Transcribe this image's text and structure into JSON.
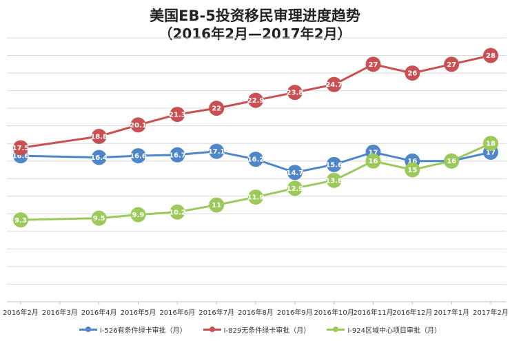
{
  "chart_data": {
    "type": "line",
    "title": "美国EB-5投资移民审理进度趋势",
    "subtitle": "（2016年2月—2017年2月）",
    "categories": [
      "2016年2月",
      "2016年3月",
      "2016年4月",
      "2016年5月",
      "2016年6月",
      "2016年7月",
      "2016年8月",
      "2016年9月",
      "2016年10月",
      "2016年11月",
      "2016年12月",
      "2017年1月",
      "2017年2月"
    ],
    "ylim": [
      0,
      30
    ],
    "grid": true,
    "legend_position": "bottom",
    "series": [
      {
        "name": "I-526有条件绿卡审批（月）",
        "color": "#4e86c8",
        "values": [
          16.6,
          null,
          16.4,
          16.6,
          16.7,
          17.1,
          16.2,
          14.7,
          15.6,
          17,
          16,
          16,
          17
        ]
      },
      {
        "name": "I-829无条件绿卡审批（月）",
        "color": "#c95052",
        "values": [
          17.5,
          null,
          18.8,
          20.1,
          21.3,
          22,
          22.9,
          23.8,
          24.7,
          27,
          26,
          27,
          28
        ]
      },
      {
        "name": "I-924区域中心项目审批（月）",
        "color": "#9bc95a",
        "values": [
          9.3,
          null,
          9.5,
          9.9,
          10.2,
          11,
          11.9,
          12.9,
          13.8,
          16,
          15,
          16,
          18
        ]
      }
    ]
  }
}
